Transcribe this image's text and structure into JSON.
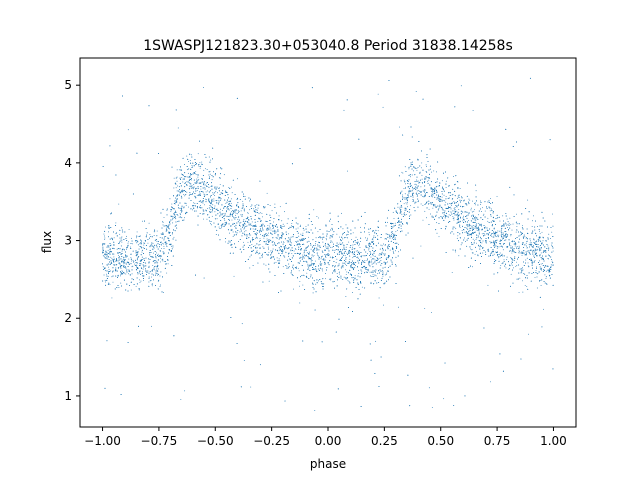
{
  "chart_data": {
    "type": "scatter",
    "title": "1SWASPJ121823.30+053040.8 Period 31838.14258s",
    "xlabel": "phase",
    "ylabel": "flux",
    "xlim": [
      -1.1,
      1.1
    ],
    "ylim": [
      0.6,
      5.35
    ],
    "xticks": [
      -1.0,
      -0.75,
      -0.5,
      -0.25,
      0.0,
      0.25,
      0.5,
      0.75,
      1.0
    ],
    "xtick_labels": [
      "−1.00",
      "−0.75",
      "−0.50",
      "−0.25",
      "0.00",
      "0.25",
      "0.50",
      "0.75",
      "1.00"
    ],
    "yticks": [
      1,
      2,
      3,
      4,
      5
    ],
    "ytick_labels": [
      "1",
      "2",
      "3",
      "4",
      "5"
    ],
    "grid": false,
    "legend": "none",
    "color": "#1f77b4",
    "marker_size": 1,
    "series": [
      {
        "phase_range": [
          -1.0,
          1.0
        ],
        "folded_profile": {
          "phase": [
            0.0,
            0.1,
            0.2,
            0.25,
            0.3,
            0.33,
            0.38,
            0.42,
            0.5,
            0.6,
            0.7,
            0.8,
            0.9,
            1.0
          ],
          "flux": [
            2.78,
            2.76,
            2.77,
            2.8,
            3.1,
            3.5,
            3.75,
            3.7,
            3.5,
            3.25,
            3.1,
            2.95,
            2.85,
            2.78
          ]
        },
        "scatter_sigma": 0.2,
        "outlier_range": [
          0.8,
          5.1
        ]
      }
    ]
  }
}
